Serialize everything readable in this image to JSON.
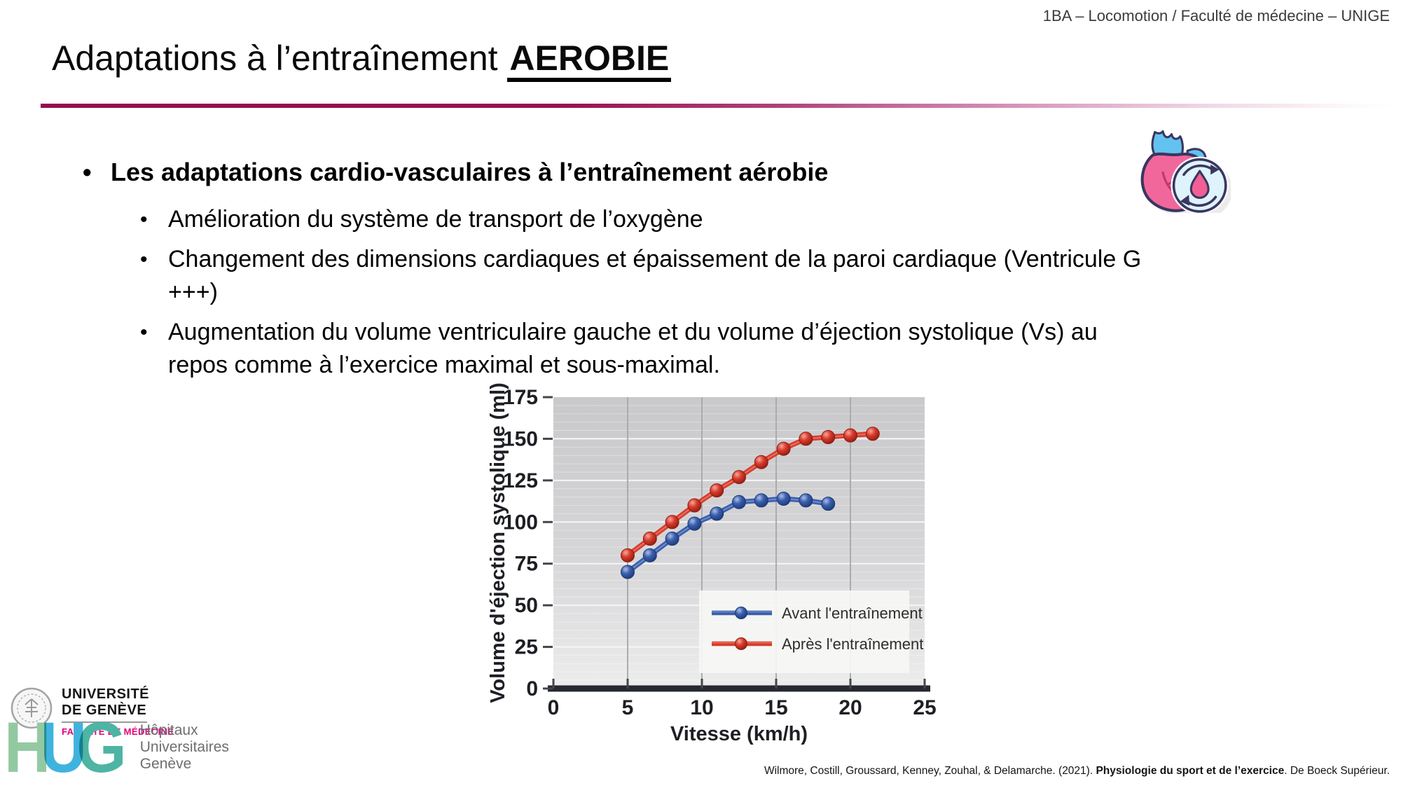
{
  "header": {
    "course_label": "1BA – Locomotion / Faculté de médecine – UNIGE"
  },
  "title": {
    "prefix": "Adaptations à l’entraînement ",
    "emphasis": "AEROBIE"
  },
  "bullets": {
    "main": {
      "text": "Les adaptations cardio-vasculaires à l’entraînement aérobie"
    },
    "sub": [
      {
        "lines": [
          "Amélioration du système de transport de l’oxygène"
        ]
      },
      {
        "lines": [
          "Changement des dimensions cardiaques et épaissement de la paroi cardiaque (Ventricule G",
          "+++)"
        ]
      },
      {
        "lines": [
          "Augmentation du volume ventriculaire gauche et du volume d’éjection systolique (Vs) au",
          "repos comme à l’exercice maximal et sous-maximal."
        ]
      }
    ]
  },
  "chart_data": {
    "type": "line",
    "title": "",
    "xlabel": "Vitesse (km/h)",
    "ylabel": "Volume d'éjection systolique (ml)",
    "xlim": [
      0,
      25
    ],
    "ylim": [
      0,
      175
    ],
    "xticks": [
      0,
      5,
      10,
      15,
      20,
      25
    ],
    "yticks": [
      0,
      25,
      50,
      75,
      100,
      125,
      150,
      175
    ],
    "grid": true,
    "legend_position": "lower-right-inside",
    "plot_bg": "#d2d2d4",
    "series": [
      {
        "name": "Avant l'entraînement",
        "color": "#3a5fae",
        "dark": "#1d3a77",
        "light": "#aebfe8",
        "x": [
          5,
          6.5,
          8,
          9.5,
          11,
          12.5,
          14,
          15.5,
          17,
          18.5
        ],
        "values": [
          70,
          80,
          90,
          99,
          105,
          112,
          113,
          114,
          113,
          111
        ]
      },
      {
        "name": "Après l'entraînement",
        "color": "#d93b2b",
        "dark": "#8e1d12",
        "light": "#f5a89e",
        "x": [
          5,
          6.5,
          8,
          9.5,
          11,
          12.5,
          14,
          15.5,
          17,
          18.5,
          20,
          21.5
        ],
        "values": [
          80,
          90,
          100,
          110,
          119,
          127,
          136,
          144,
          150,
          151,
          152,
          153
        ]
      }
    ]
  },
  "footer": {
    "unige": {
      "line1": "UNIVERSITÉ",
      "line2": "DE GENÈVE",
      "faculty": "FACULTÉ DE MÉDECINE"
    },
    "hug": {
      "letters": [
        "H",
        "U",
        "G"
      ],
      "name_lines": [
        "Hôpitaux",
        "Universitaires",
        "Genève"
      ]
    },
    "citation": {
      "prefix": "Wilmore, Costill, Groussard, Kenney, Zouhal, & Delamarche. (2021). ",
      "title": "Physiologie du sport et de l’exercice",
      "suffix": ". De Boeck Supérieur."
    }
  },
  "colors": {
    "divider_accent": "#970e52",
    "faculty_pink": "#e0007a",
    "hug_green": "#93c9a2",
    "hug_blue": "#3fb3de",
    "hug_teal": "#4eb4a3",
    "chart_blue": "#3a5fae",
    "chart_red": "#d93b2b",
    "heart_pink": "#f2679b",
    "heart_vessel_blue": "#63c2ef",
    "heart_outline_navy": "#3a3660"
  }
}
